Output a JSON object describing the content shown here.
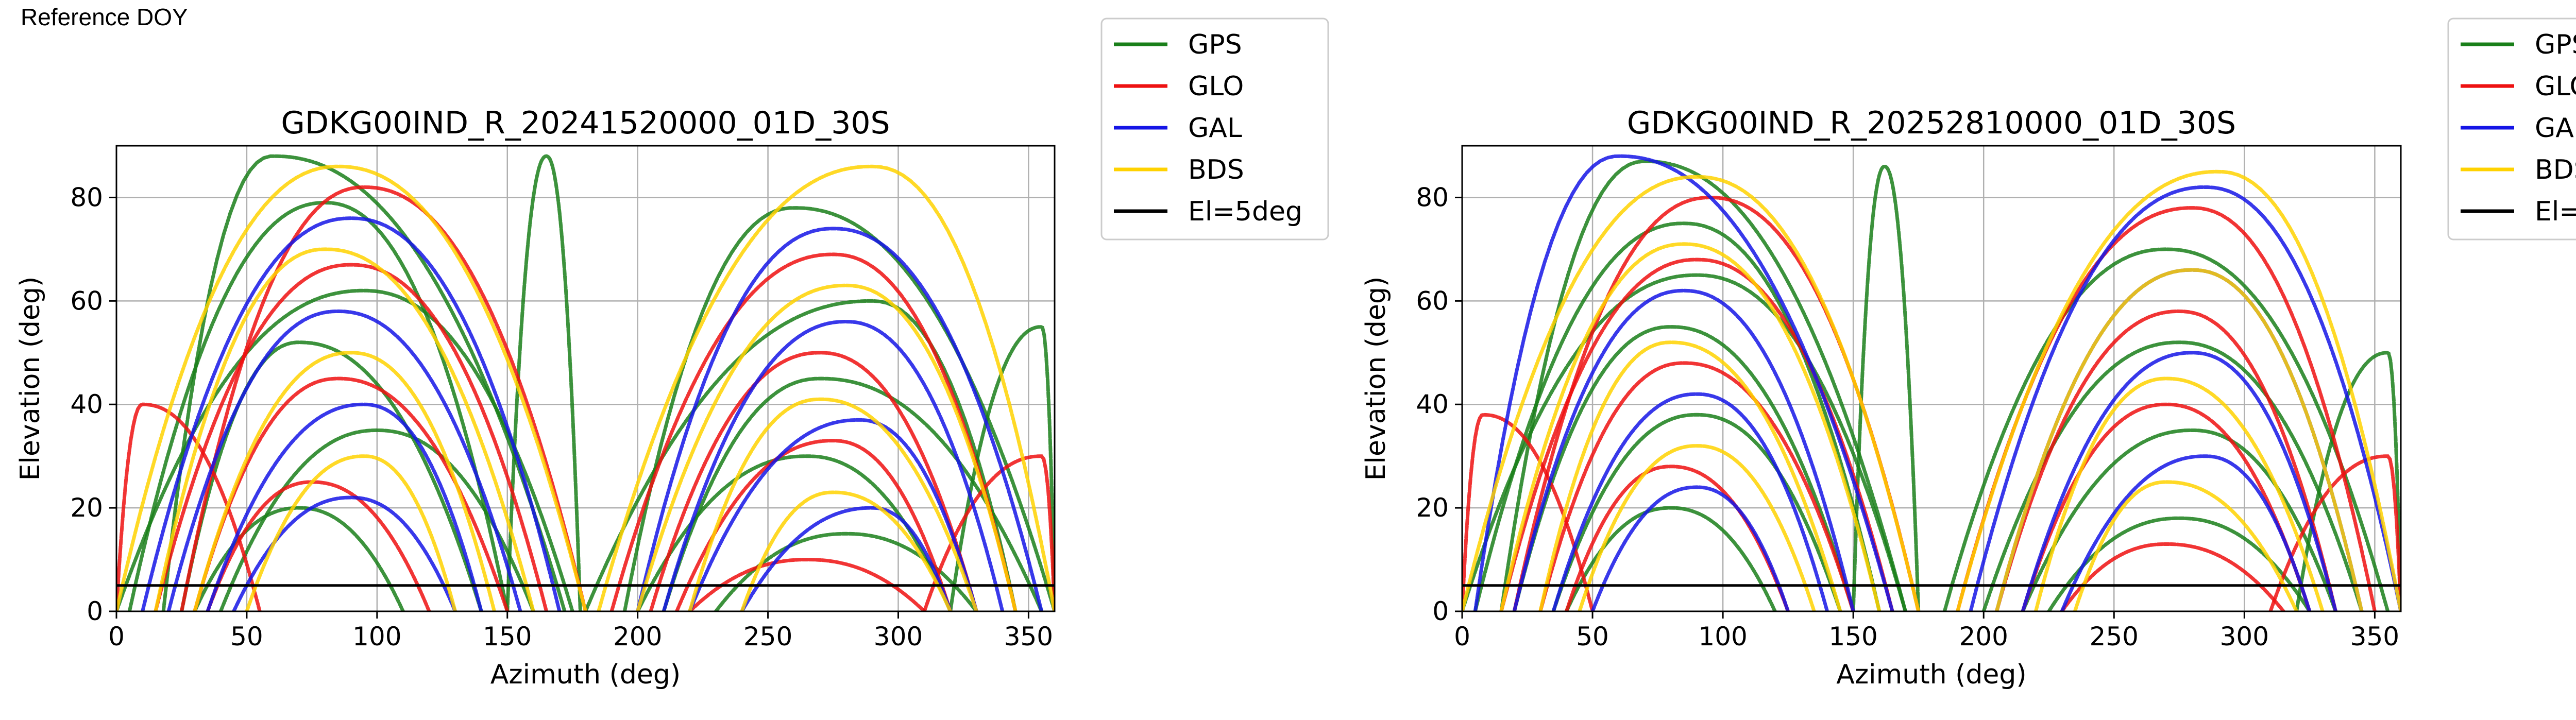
{
  "header": {
    "label": "Reference DOY"
  },
  "legend_entries": [
    {
      "label": "GPS",
      "color": "#1a7f1a"
    },
    {
      "label": "GLO",
      "color": "#ee1111"
    },
    {
      "label": "GAL",
      "color": "#1515e6"
    },
    {
      "label": "BDS",
      "color": "#ffd200"
    },
    {
      "label": "El=5deg",
      "color": "#000000"
    }
  ],
  "chart_data": [
    {
      "type": "scatter",
      "title": "GDKG00IND_R_20241520000_01D_30S",
      "xlabel": "Azimuth (deg)",
      "ylabel": "Elevation (deg)",
      "xlim": [
        0,
        360
      ],
      "ylim": [
        0,
        90
      ],
      "xticks": [
        0,
        50,
        100,
        150,
        200,
        250,
        300,
        350
      ],
      "yticks": [
        0,
        20,
        40,
        60,
        80
      ],
      "grid": true,
      "legend_placement": "outside-right",
      "reference_line": {
        "label": "El=5deg",
        "elevation": 5
      },
      "series": [
        {
          "name": "GPS",
          "color": "#1a7f1a",
          "tracks": [
            {
              "az0": 18,
              "az1": 172,
              "peak": 88,
              "peakAz": 60
            },
            {
              "az0": 5,
              "az1": 150,
              "peak": 79,
              "peakAz": 80
            },
            {
              "az0": 0,
              "az1": 175,
              "peak": 62,
              "peakAz": 95
            },
            {
              "az0": 25,
              "az1": 140,
              "peak": 52,
              "peakAz": 70
            },
            {
              "az0": 40,
              "az1": 160,
              "peak": 35,
              "peakAz": 100
            },
            {
              "az0": 30,
              "az1": 110,
              "peak": 20,
              "peakAz": 70
            },
            {
              "az0": 195,
              "az1": 360,
              "peak": 78,
              "peakAz": 260
            },
            {
              "az0": 180,
              "az1": 345,
              "peak": 60,
              "peakAz": 290
            },
            {
              "az0": 210,
              "az1": 355,
              "peak": 45,
              "peakAz": 270
            },
            {
              "az0": 200,
              "az1": 320,
              "peak": 30,
              "peakAz": 265
            },
            {
              "az0": 230,
              "az1": 330,
              "peak": 15,
              "peakAz": 280
            },
            {
              "az0": 150,
              "az1": 178,
              "peak": 88,
              "peakAz": 165
            },
            {
              "az0": 320,
              "az1": 360,
              "peak": 55,
              "peakAz": 355
            }
          ]
        },
        {
          "name": "GLO",
          "color": "#ee1111",
          "tracks": [
            {
              "az0": 25,
              "az1": 180,
              "peak": 82,
              "peakAz": 95
            },
            {
              "az0": 15,
              "az1": 165,
              "peak": 67,
              "peakAz": 90
            },
            {
              "az0": 30,
              "az1": 150,
              "peak": 45,
              "peakAz": 85
            },
            {
              "az0": 35,
              "az1": 120,
              "peak": 25,
              "peakAz": 75
            },
            {
              "az0": 0,
              "az1": 55,
              "peak": 40,
              "peakAz": 10
            },
            {
              "az0": 190,
              "az1": 345,
              "peak": 69,
              "peakAz": 275
            },
            {
              "az0": 205,
              "az1": 330,
              "peak": 50,
              "peakAz": 270
            },
            {
              "az0": 215,
              "az1": 320,
              "peak": 33,
              "peakAz": 275
            },
            {
              "az0": 220,
              "az1": 310,
              "peak": 10,
              "peakAz": 265
            },
            {
              "az0": 310,
              "az1": 360,
              "peak": 30,
              "peakAz": 355
            }
          ]
        },
        {
          "name": "GAL",
          "color": "#1515e6",
          "tracks": [
            {
              "az0": 10,
              "az1": 170,
              "peak": 76,
              "peakAz": 90
            },
            {
              "az0": 20,
              "az1": 155,
              "peak": 58,
              "peakAz": 85
            },
            {
              "az0": 35,
              "az1": 140,
              "peak": 40,
              "peakAz": 95
            },
            {
              "az0": 45,
              "az1": 130,
              "peak": 22,
              "peakAz": 90
            },
            {
              "az0": 200,
              "az1": 355,
              "peak": 74,
              "peakAz": 275
            },
            {
              "az0": 210,
              "az1": 340,
              "peak": 56,
              "peakAz": 280
            },
            {
              "az0": 220,
              "az1": 330,
              "peak": 37,
              "peakAz": 285
            },
            {
              "az0": 240,
              "az1": 320,
              "peak": 20,
              "peakAz": 290
            }
          ]
        },
        {
          "name": "BDS",
          "color": "#ffd200",
          "tracks": [
            {
              "az0": 0,
              "az1": 180,
              "peak": 86,
              "peakAz": 85
            },
            {
              "az0": 15,
              "az1": 160,
              "peak": 70,
              "peakAz": 80
            },
            {
              "az0": 30,
              "az1": 145,
              "peak": 50,
              "peakAz": 90
            },
            {
              "az0": 50,
              "az1": 130,
              "peak": 30,
              "peakAz": 95
            },
            {
              "az0": 185,
              "az1": 360,
              "peak": 86,
              "peakAz": 290
            },
            {
              "az0": 200,
              "az1": 345,
              "peak": 63,
              "peakAz": 280
            },
            {
              "az0": 220,
              "az1": 330,
              "peak": 41,
              "peakAz": 270
            },
            {
              "az0": 240,
              "az1": 320,
              "peak": 23,
              "peakAz": 275
            }
          ]
        }
      ]
    },
    {
      "type": "scatter",
      "title": "GDKG00IND_R_20252810000_01D_30S",
      "xlabel": "Azimuth (deg)",
      "ylabel": "Elevation (deg)",
      "xlim": [
        0,
        360
      ],
      "ylim": [
        0,
        90
      ],
      "xticks": [
        0,
        50,
        100,
        150,
        200,
        250,
        300,
        350
      ],
      "yticks": [
        0,
        20,
        40,
        60,
        80
      ],
      "grid": true,
      "legend_placement": "outside-right",
      "reference_line": {
        "label": "El=5deg",
        "elevation": 5
      },
      "series": [
        {
          "name": "GPS",
          "color": "#1a7f1a",
          "tracks": [
            {
              "az0": 15,
              "az1": 170,
              "peak": 87,
              "peakAz": 70
            },
            {
              "az0": 5,
              "az1": 160,
              "peak": 75,
              "peakAz": 85
            },
            {
              "az0": 0,
              "az1": 170,
              "peak": 65,
              "peakAz": 90
            },
            {
              "az0": 20,
              "az1": 150,
              "peak": 55,
              "peakAz": 80
            },
            {
              "az0": 35,
              "az1": 145,
              "peak": 38,
              "peakAz": 90
            },
            {
              "az0": 40,
              "az1": 120,
              "peak": 20,
              "peakAz": 80
            },
            {
              "az0": 185,
              "az1": 355,
              "peak": 70,
              "peakAz": 270
            },
            {
              "az0": 200,
              "az1": 345,
              "peak": 52,
              "peakAz": 275
            },
            {
              "az0": 215,
              "az1": 335,
              "peak": 35,
              "peakAz": 280
            },
            {
              "az0": 225,
              "az1": 325,
              "peak": 18,
              "peakAz": 275
            },
            {
              "az0": 150,
              "az1": 175,
              "peak": 86,
              "peakAz": 162
            },
            {
              "az0": 320,
              "az1": 360,
              "peak": 50,
              "peakAz": 355
            }
          ]
        },
        {
          "name": "GLO",
          "color": "#ee1111",
          "tracks": [
            {
              "az0": 20,
              "az1": 175,
              "peak": 80,
              "peakAz": 95
            },
            {
              "az0": 15,
              "az1": 165,
              "peak": 68,
              "peakAz": 90
            },
            {
              "az0": 30,
              "az1": 150,
              "peak": 48,
              "peakAz": 85
            },
            {
              "az0": 40,
              "az1": 125,
              "peak": 28,
              "peakAz": 80
            },
            {
              "az0": 0,
              "az1": 50,
              "peak": 38,
              "peakAz": 8
            },
            {
              "az0": 190,
              "az1": 350,
              "peak": 78,
              "peakAz": 280
            },
            {
              "az0": 205,
              "az1": 335,
              "peak": 58,
              "peakAz": 275
            },
            {
              "az0": 215,
              "az1": 325,
              "peak": 40,
              "peakAz": 270
            },
            {
              "az0": 230,
              "az1": 315,
              "peak": 13,
              "peakAz": 270
            },
            {
              "az0": 310,
              "az1": 360,
              "peak": 30,
              "peakAz": 355
            }
          ]
        },
        {
          "name": "GAL",
          "color": "#1515e6",
          "tracks": [
            {
              "az0": 5,
              "az1": 165,
              "peak": 88,
              "peakAz": 60
            },
            {
              "az0": 20,
              "az1": 150,
              "peak": 62,
              "peakAz": 85
            },
            {
              "az0": 35,
              "az1": 140,
              "peak": 42,
              "peakAz": 90
            },
            {
              "az0": 50,
              "az1": 125,
              "peak": 24,
              "peakAz": 90
            },
            {
              "az0": 195,
              "az1": 360,
              "peak": 82,
              "peakAz": 285
            },
            {
              "az0": 205,
              "az1": 345,
              "peak": 66,
              "peakAz": 280
            },
            {
              "az0": 215,
              "az1": 335,
              "peak": 50,
              "peakAz": 280
            },
            {
              "az0": 230,
              "az1": 325,
              "peak": 30,
              "peakAz": 285
            }
          ]
        },
        {
          "name": "BDS",
          "color": "#ffd200",
          "tracks": [
            {
              "az0": 0,
              "az1": 175,
              "peak": 84,
              "peakAz": 90
            },
            {
              "az0": 15,
              "az1": 160,
              "peak": 71,
              "peakAz": 85
            },
            {
              "az0": 30,
              "az1": 145,
              "peak": 52,
              "peakAz": 80
            },
            {
              "az0": 45,
              "az1": 135,
              "peak": 32,
              "peakAz": 90
            },
            {
              "az0": 190,
              "az1": 360,
              "peak": 85,
              "peakAz": 290
            },
            {
              "az0": 205,
              "az1": 345,
              "peak": 66,
              "peakAz": 280
            },
            {
              "az0": 220,
              "az1": 330,
              "peak": 45,
              "peakAz": 270
            },
            {
              "az0": 235,
              "az1": 320,
              "peak": 25,
              "peakAz": 270
            }
          ]
        }
      ]
    }
  ]
}
